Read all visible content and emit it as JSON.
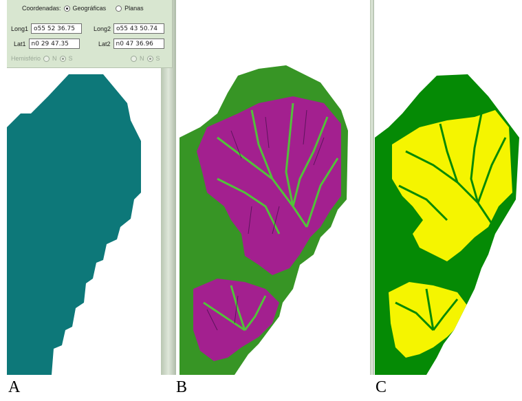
{
  "panel": {
    "coordinates_label": "Coordenadas:",
    "option_geographic": "Geográficas",
    "option_plane": "Planas",
    "long1_label": "Long1",
    "long1_value": "o55 52 36.75",
    "long2_label": "Long2",
    "long2_value": "o55 43 50.74",
    "lat1_label": "Lat1",
    "lat1_value": "n0 29 47.35",
    "lat2_label": "Lat2",
    "lat2_value": "n0 47 36.96",
    "hemisphere_label": "Hemisfério",
    "hemisphere_n": "N",
    "hemisphere_s": "S"
  },
  "captions": {
    "a": "A",
    "b": "B",
    "c": "C"
  },
  "colors": {
    "mask": "#0d7879",
    "vegetation": "#3fa329",
    "vegetation_dark": "#1f6a1b",
    "magenta": "#a3208f",
    "green": "#058a05",
    "yellow": "#f5f500"
  }
}
